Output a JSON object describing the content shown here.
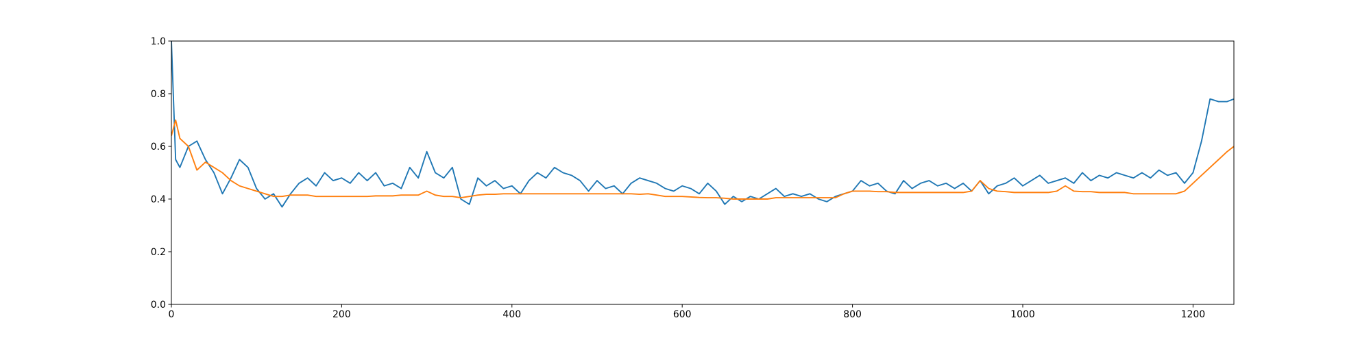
{
  "chart_data": {
    "type": "line",
    "x": [
      0,
      5,
      10,
      20,
      30,
      40,
      50,
      60,
      70,
      80,
      90,
      100,
      110,
      120,
      130,
      140,
      150,
      160,
      170,
      180,
      190,
      200,
      210,
      220,
      230,
      240,
      250,
      260,
      270,
      280,
      290,
      300,
      310,
      320,
      330,
      340,
      350,
      360,
      370,
      380,
      390,
      400,
      410,
      420,
      430,
      440,
      450,
      460,
      470,
      480,
      490,
      500,
      510,
      520,
      530,
      540,
      550,
      560,
      570,
      580,
      590,
      600,
      610,
      620,
      630,
      640,
      650,
      660,
      670,
      680,
      690,
      700,
      710,
      720,
      730,
      740,
      750,
      760,
      770,
      780,
      790,
      800,
      810,
      820,
      830,
      840,
      850,
      860,
      870,
      880,
      890,
      900,
      910,
      920,
      930,
      940,
      950,
      960,
      970,
      980,
      990,
      1000,
      1010,
      1020,
      1030,
      1040,
      1050,
      1060,
      1070,
      1080,
      1090,
      1100,
      1110,
      1120,
      1130,
      1140,
      1150,
      1160,
      1170,
      1180,
      1190,
      1200,
      1210,
      1220,
      1230,
      1240,
      1248
    ],
    "series": [
      {
        "color": "#1f77b4",
        "values": [
          1.0,
          0.55,
          0.52,
          0.6,
          0.62,
          0.55,
          0.5,
          0.42,
          0.48,
          0.55,
          0.52,
          0.44,
          0.4,
          0.42,
          0.37,
          0.42,
          0.46,
          0.48,
          0.45,
          0.5,
          0.47,
          0.48,
          0.46,
          0.5,
          0.47,
          0.5,
          0.45,
          0.46,
          0.44,
          0.52,
          0.48,
          0.58,
          0.5,
          0.48,
          0.52,
          0.4,
          0.38,
          0.48,
          0.45,
          0.47,
          0.44,
          0.45,
          0.42,
          0.47,
          0.5,
          0.48,
          0.52,
          0.5,
          0.49,
          0.47,
          0.43,
          0.47,
          0.44,
          0.45,
          0.42,
          0.46,
          0.48,
          0.47,
          0.46,
          0.44,
          0.43,
          0.45,
          0.44,
          0.42,
          0.46,
          0.43,
          0.38,
          0.41,
          0.39,
          0.41,
          0.4,
          0.42,
          0.44,
          0.41,
          0.42,
          0.41,
          0.42,
          0.4,
          0.39,
          0.41,
          0.42,
          0.43,
          0.47,
          0.45,
          0.46,
          0.43,
          0.42,
          0.47,
          0.44,
          0.46,
          0.47,
          0.45,
          0.46,
          0.44,
          0.46,
          0.43,
          0.47,
          0.42,
          0.45,
          0.46,
          0.48,
          0.45,
          0.47,
          0.49,
          0.46,
          0.47,
          0.48,
          0.46,
          0.5,
          0.47,
          0.49,
          0.48,
          0.5,
          0.49,
          0.48,
          0.5,
          0.48,
          0.51,
          0.49,
          0.5,
          0.46,
          0.5,
          0.62,
          0.78,
          0.77,
          0.77,
          0.78
        ]
      },
      {
        "color": "#ff7f0e",
        "values": [
          0.64,
          0.7,
          0.63,
          0.6,
          0.51,
          0.54,
          0.52,
          0.5,
          0.47,
          0.45,
          0.44,
          0.43,
          0.42,
          0.41,
          0.41,
          0.415,
          0.415,
          0.415,
          0.41,
          0.41,
          0.41,
          0.41,
          0.41,
          0.41,
          0.41,
          0.412,
          0.412,
          0.412,
          0.415,
          0.415,
          0.415,
          0.43,
          0.415,
          0.41,
          0.41,
          0.405,
          0.41,
          0.415,
          0.418,
          0.418,
          0.42,
          0.42,
          0.42,
          0.42,
          0.42,
          0.42,
          0.42,
          0.42,
          0.42,
          0.42,
          0.42,
          0.42,
          0.42,
          0.42,
          0.42,
          0.42,
          0.418,
          0.42,
          0.415,
          0.41,
          0.41,
          0.41,
          0.408,
          0.406,
          0.405,
          0.405,
          0.403,
          0.4,
          0.4,
          0.4,
          0.4,
          0.4,
          0.405,
          0.405,
          0.405,
          0.405,
          0.405,
          0.405,
          0.405,
          0.405,
          0.42,
          0.43,
          0.43,
          0.43,
          0.428,
          0.428,
          0.425,
          0.425,
          0.425,
          0.425,
          0.425,
          0.425,
          0.425,
          0.425,
          0.425,
          0.43,
          0.47,
          0.44,
          0.43,
          0.428,
          0.425,
          0.425,
          0.425,
          0.425,
          0.425,
          0.43,
          0.45,
          0.43,
          0.428,
          0.428,
          0.425,
          0.425,
          0.425,
          0.425,
          0.42,
          0.42,
          0.42,
          0.42,
          0.42,
          0.42,
          0.43,
          0.46,
          0.49,
          0.52,
          0.55,
          0.58,
          0.6
        ]
      }
    ],
    "xlim": [
      0,
      1248
    ],
    "ylim": [
      0,
      1
    ],
    "xticks": [
      0,
      200,
      400,
      600,
      800,
      1000,
      1200
    ],
    "yticks": [
      {
        "value": 0,
        "label": "0.0"
      },
      0.2,
      0.4,
      0.6,
      0.8,
      {
        "value": 1,
        "label": "1.0"
      }
    ]
  }
}
